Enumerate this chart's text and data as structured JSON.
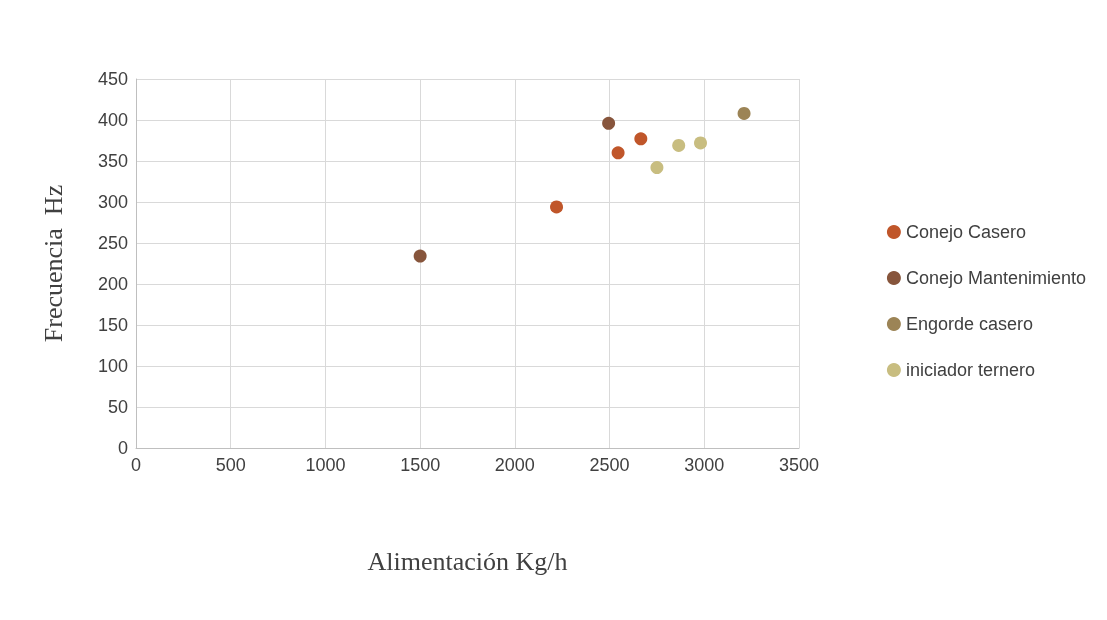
{
  "chart_data": {
    "type": "scatter",
    "xlabel": "Alimentación Kg/h",
    "ylabel": "Frecuencia  Hz",
    "series": [
      {
        "name": "Conejo Casero",
        "color": "#c0562a",
        "x": [
          2220,
          2545,
          2665
        ],
        "values": [
          294,
          360,
          377
        ]
      },
      {
        "name": "Conejo Mantenimiento",
        "color": "#87553c",
        "x": [
          1500,
          2495
        ],
        "values": [
          234,
          396
        ]
      },
      {
        "name": "Engorde casero",
        "color": "#9c8456",
        "x": [
          3210
        ],
        "values": [
          408
        ]
      },
      {
        "name": "iniciador ternero",
        "color": "#c8bd80",
        "x": [
          2750,
          2865,
          2980
        ],
        "values": [
          342,
          369,
          372
        ]
      }
    ],
    "xlim": [
      0,
      3500
    ],
    "xticks": [
      0,
      500,
      1000,
      1500,
      2000,
      2500,
      3000,
      3500
    ],
    "ylim": [
      0,
      450
    ],
    "yticks": [
      0,
      50,
      100,
      150,
      200,
      250,
      300,
      350,
      400,
      450
    ],
    "grid": true,
    "legend": "right",
    "marker": "circle"
  }
}
